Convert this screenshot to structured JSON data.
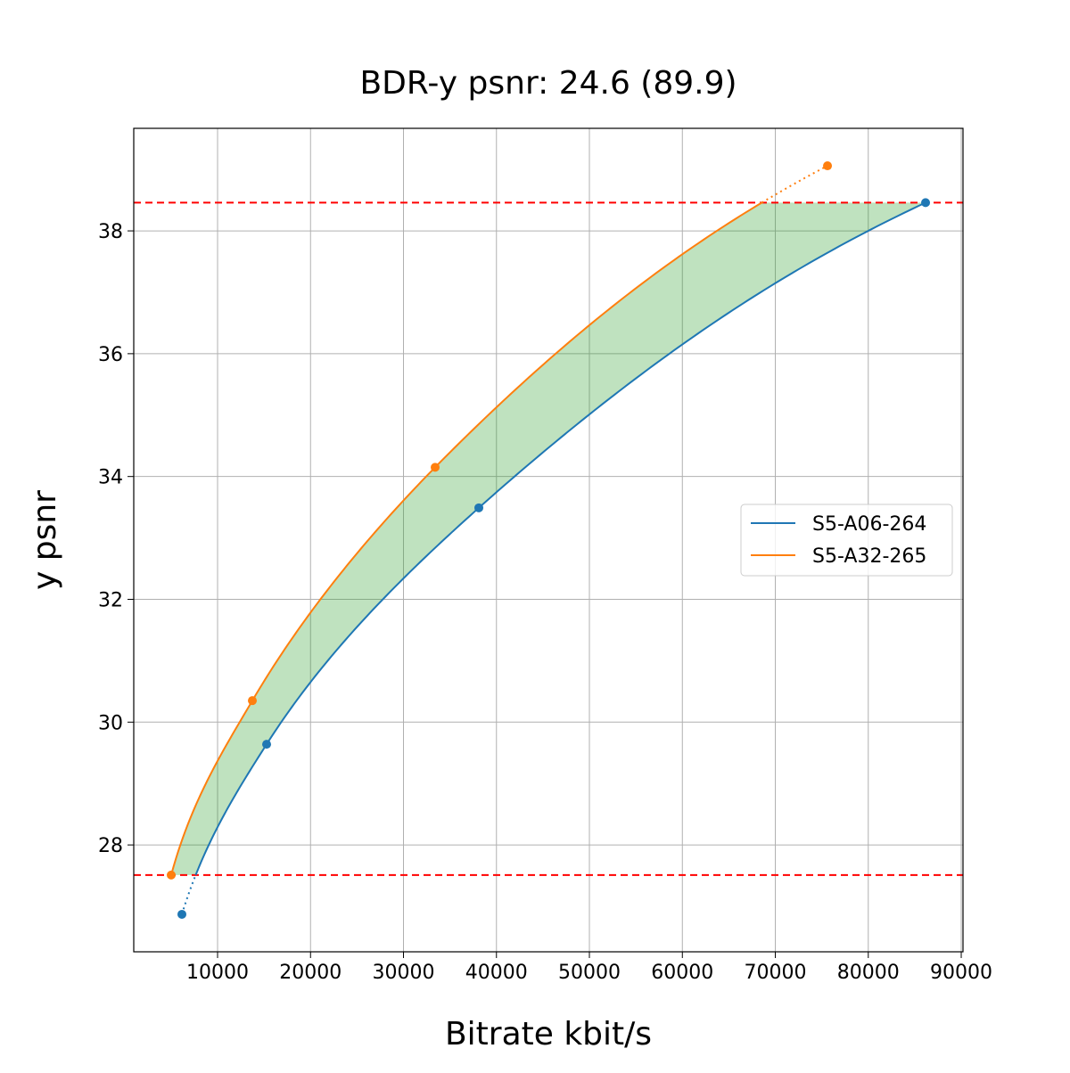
{
  "chart_data": {
    "type": "line",
    "title": "BDR-y psnr: 24.6 (89.9)",
    "xlabel": "Bitrate kbit/s",
    "ylabel": "y psnr",
    "xlim": [
      983,
      90190
    ],
    "ylim": [
      26.26,
      39.67
    ],
    "xticks": [
      10000,
      20000,
      30000,
      40000,
      50000,
      60000,
      70000,
      80000,
      90000
    ],
    "yticks": [
      28,
      30,
      32,
      34,
      36,
      38
    ],
    "grid": true,
    "legend_position": "center-right",
    "series": [
      {
        "name": "S5-A06-264",
        "color": "#1f77b4",
        "x": [
          6163,
          15276,
          38106,
          86163
        ],
        "y": [
          26.87,
          29.64,
          33.49,
          38.46
        ]
      },
      {
        "name": "S5-A32-265",
        "color": "#ff7f0e",
        "x": [
          5012,
          13741,
          33405,
          75612
        ],
        "y": [
          27.51,
          30.35,
          34.15,
          39.06
        ]
      }
    ],
    "reference_lines": {
      "y": [
        38.46,
        27.51
      ],
      "color": "#ff0000",
      "style": "dashed"
    },
    "fill_between": {
      "color": "#2ca02c",
      "alpha": 0.3
    }
  }
}
